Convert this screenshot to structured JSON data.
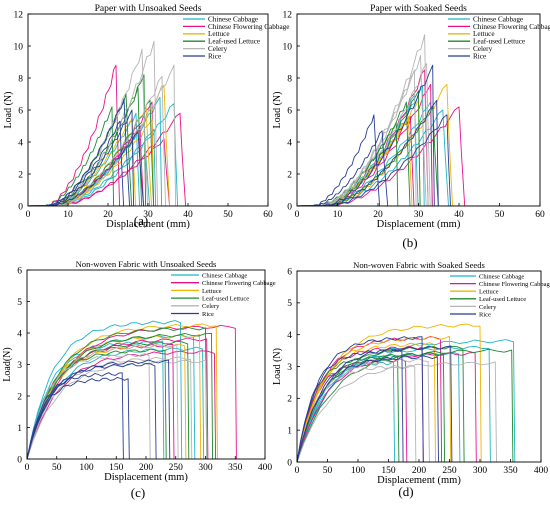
{
  "legend_labels": [
    "Chinese Cabbage",
    "Chinese Flowering Cabbage",
    "Lettuce",
    "Leaf-used Lettuce",
    "Celery",
    "Rice"
  ],
  "series_colors": [
    "#1fb5c9",
    "#e8118a",
    "#f0b400",
    "#1d8a2f",
    "#b4b4b4",
    "#283c94"
  ],
  "chart_data": [
    {
      "type": "line",
      "panel_label": "(a)",
      "title": "Paper with Unsoaked Seeds",
      "xlabel": "Displacement (mm)",
      "ylabel": "Load (N)",
      "xlim": [
        0,
        60
      ],
      "ylim": [
        0,
        12
      ],
      "xticks": [
        0,
        10,
        20,
        30,
        40,
        50,
        60
      ],
      "yticks": [
        0,
        2,
        4,
        6,
        8,
        10,
        12
      ],
      "legend_position": "top-right",
      "series": [
        {
          "name": "Chinese Cabbage",
          "peaks": [
            [
              33.0,
              6.8
            ],
            [
              36.5,
              6.4
            ],
            [
              29.0,
              5.2
            ],
            [
              31.5,
              4.8
            ],
            [
              27.0,
              5.8
            ]
          ]
        },
        {
          "name": "Chinese Flowering Cabbage",
          "peaks": [
            [
              22.0,
              8.8
            ],
            [
              38.0,
              5.8
            ],
            [
              31.0,
              6.5
            ],
            [
              28.0,
              5.0
            ],
            [
              34.0,
              4.2
            ]
          ]
        },
        {
          "name": "Lettuce",
          "peaks": [
            [
              34.0,
              7.5
            ],
            [
              31.0,
              5.4
            ],
            [
              26.0,
              5.5
            ],
            [
              29.5,
              6.2
            ]
          ]
        },
        {
          "name": "Leaf-used Lettuce",
          "peaks": [
            [
              29.0,
              8.2
            ],
            [
              27.5,
              7.4
            ],
            [
              24.5,
              7.0
            ],
            [
              21.0,
              6.2
            ],
            [
              30.5,
              6.6
            ]
          ]
        },
        {
          "name": "Celery",
          "peaks": [
            [
              31.5,
              10.3
            ],
            [
              28.5,
              9.8
            ],
            [
              36.5,
              8.8
            ],
            [
              33.5,
              8.1
            ]
          ]
        },
        {
          "name": "Rice",
          "peaks": [
            [
              24.0,
              6.7
            ],
            [
              26.0,
              6.0
            ],
            [
              23.0,
              5.3
            ],
            [
              27.5,
              4.6
            ]
          ]
        }
      ]
    },
    {
      "type": "line",
      "panel_label": "(b)",
      "title": "Paper with Soaked Seeds",
      "xlabel": "Displacement (mm)",
      "ylabel": "Load (N)",
      "xlim": [
        0,
        60
      ],
      "ylim": [
        0,
        12
      ],
      "xticks": [
        0,
        10,
        20,
        30,
        40,
        50,
        60
      ],
      "yticks": [
        0,
        2,
        4,
        6,
        8,
        10,
        12
      ],
      "legend_position": "top-right",
      "series": [
        {
          "name": "Chinese Cabbage",
          "peaks": [
            [
              31.0,
              7.5
            ],
            [
              29.0,
              6.9
            ],
            [
              36.0,
              6.0
            ],
            [
              33.0,
              6.5
            ]
          ]
        },
        {
          "name": "Chinese Flowering Cabbage",
          "peaks": [
            [
              31.5,
              8.5
            ],
            [
              40.0,
              6.2
            ],
            [
              33.0,
              7.6
            ],
            [
              28.0,
              5.6
            ]
          ]
        },
        {
          "name": "Lettuce",
          "peaks": [
            [
              37.0,
              7.6
            ],
            [
              30.0,
              6.6
            ],
            [
              27.5,
              5.6
            ]
          ]
        },
        {
          "name": "Leaf-used Lettuce",
          "peaks": [
            [
              30.0,
              7.2
            ],
            [
              27.0,
              6.5
            ],
            [
              33.5,
              6.2
            ],
            [
              24.5,
              5.2
            ]
          ]
        },
        {
          "name": "Celery",
          "peaks": [
            [
              31.5,
              10.7
            ],
            [
              30.5,
              9.4
            ],
            [
              29.0,
              8.5
            ],
            [
              32.0,
              8.9
            ]
          ]
        },
        {
          "name": "Rice",
          "peaks": [
            [
              19.0,
              5.7
            ],
            [
              33.5,
              8.8
            ],
            [
              37.0,
              5.7
            ],
            [
              21.0,
              4.7
            ],
            [
              34.5,
              6.6
            ]
          ]
        }
      ]
    },
    {
      "type": "line",
      "panel_label": "(c)",
      "title": "Non-woven Fabric with Unsoaked Seeds",
      "xlabel": "Displacement (mm)",
      "ylabel": "Load(N)",
      "xlim": [
        0,
        400
      ],
      "ylim": [
        0,
        6
      ],
      "xticks": [
        0,
        50,
        100,
        150,
        200,
        250,
        300,
        350,
        400
      ],
      "yticks": [
        0,
        1,
        2,
        3,
        4,
        5,
        6
      ],
      "legend_position": "top-right",
      "series": [
        {
          "name": "Chinese Cabbage",
          "peaks": [
            [
              258,
              4.35
            ],
            [
              280,
              3.9
            ],
            [
              228,
              3.7
            ],
            [
              295,
              3.5
            ]
          ]
        },
        {
          "name": "Chinese Flowering Cabbage",
          "peaks": [
            [
              350,
              4.2
            ],
            [
              302,
              3.8
            ],
            [
              245,
              3.6
            ],
            [
              315,
              3.4
            ]
          ]
        },
        {
          "name": "Lettuce",
          "peaks": [
            [
              318,
              4.25
            ],
            [
              290,
              3.9
            ],
            [
              265,
              3.6
            ]
          ]
        },
        {
          "name": "Leaf-used Lettuce",
          "peaks": [
            [
              300,
              4.15
            ],
            [
              310,
              3.95
            ],
            [
              270,
              3.7
            ],
            [
              232,
              3.45
            ]
          ]
        },
        {
          "name": "Celery",
          "peaks": [
            [
              252,
              3.6
            ],
            [
              205,
              3.3
            ],
            [
              275,
              3.2
            ],
            [
              300,
              3.1
            ]
          ]
        },
        {
          "name": "Rice",
          "peaks": [
            [
              160,
              2.7
            ],
            [
              215,
              3.0
            ],
            [
              170,
              2.55
            ],
            [
              238,
              3.1
            ]
          ]
        }
      ]
    },
    {
      "type": "line",
      "panel_label": "(d)",
      "title": "Non-woven Fabric with Soaked Seeds",
      "xlabel": "Displacement (mm)",
      "ylabel": "Load (N)",
      "xlim": [
        0,
        400
      ],
      "ylim": [
        0,
        6
      ],
      "xticks": [
        0,
        50,
        100,
        150,
        200,
        250,
        300,
        350,
        400
      ],
      "yticks": [
        0,
        1,
        2,
        3,
        4,
        5,
        6
      ],
      "legend_position": "top-right",
      "series": [
        {
          "name": "Chinese Cabbage",
          "peaks": [
            [
              355,
              3.8
            ],
            [
              315,
              3.6
            ],
            [
              158,
              3.1
            ],
            [
              265,
              3.4
            ]
          ]
        },
        {
          "name": "Chinese Flowering Cabbage",
          "peaks": [
            [
              235,
              3.9
            ],
            [
              205,
              3.6
            ],
            [
              292,
              3.4
            ],
            [
              178,
              3.2
            ]
          ]
        },
        {
          "name": "Lettuce",
          "peaks": [
            [
              300,
              4.3
            ],
            [
              250,
              3.9
            ],
            [
              225,
              3.7
            ]
          ]
        },
        {
          "name": "Leaf-used Lettuce",
          "peaks": [
            [
              352,
              3.5
            ],
            [
              165,
              3.3
            ],
            [
              272,
              3.6
            ],
            [
              240,
              3.4
            ]
          ]
        },
        {
          "name": "Celery",
          "peaks": [
            [
              325,
              3.1
            ],
            [
              193,
              3.0
            ],
            [
              215,
              3.2
            ]
          ]
        },
        {
          "name": "Rice",
          "peaks": [
            [
              205,
              3.9
            ],
            [
              172,
              3.5
            ],
            [
              230,
              3.3
            ],
            [
              252,
              3.6
            ]
          ]
        }
      ]
    }
  ]
}
